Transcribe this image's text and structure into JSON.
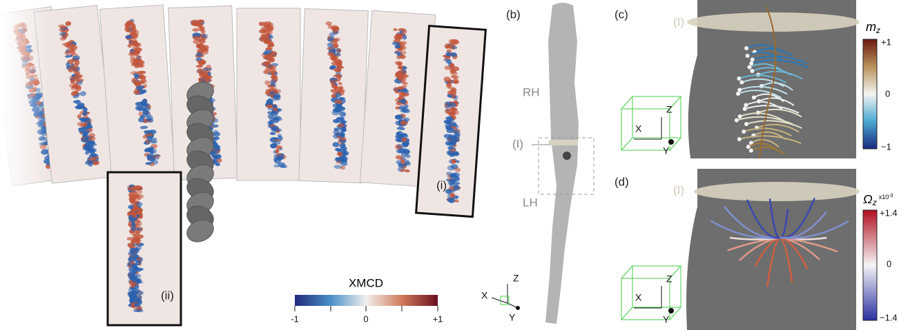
{
  "panel_a": {
    "insets": [
      "(i)",
      "(ii)"
    ],
    "colorbar": {
      "title": "XMCD",
      "ticks": [
        "-1",
        "0",
        "+1"
      ]
    }
  },
  "panel_b": {
    "label": "(b)",
    "regions": [
      "RH",
      "(I)",
      "LH"
    ],
    "axes": [
      "X",
      "Y",
      "Z"
    ]
  },
  "panel_c": {
    "label": "(c)",
    "plane": "(I)",
    "colorbar": {
      "title": "m",
      "subscript": "z",
      "ticks": [
        "+1",
        "0",
        "−1"
      ]
    },
    "axes": [
      "X",
      "Y",
      "Z"
    ]
  },
  "panel_d": {
    "label": "(d)",
    "plane": "(I)",
    "colorbar": {
      "title": "Ω",
      "subscript": "z",
      "scale": "x10",
      "scale_exp": "-3",
      "ticks": [
        "+1.4",
        "0",
        "−1.4"
      ]
    },
    "axes": [
      "X",
      "Y",
      "Z"
    ]
  }
}
